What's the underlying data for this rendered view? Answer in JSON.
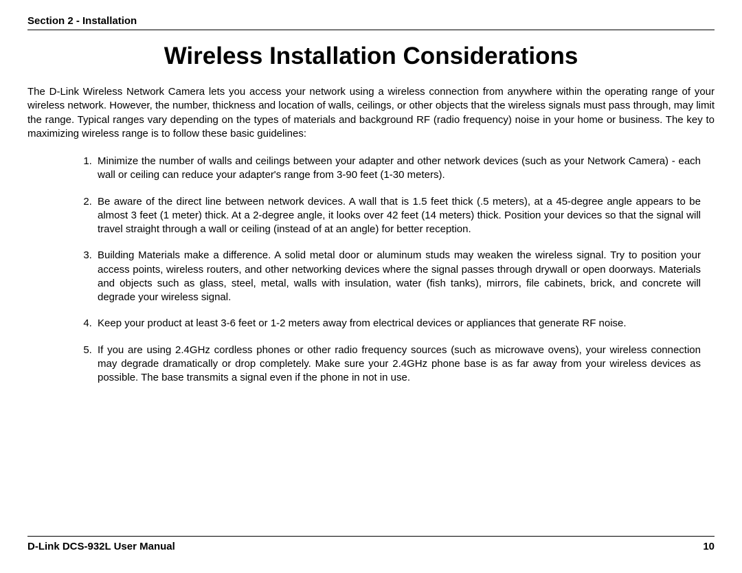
{
  "header": {
    "section_label": "Section 2 - Installation"
  },
  "title": "Wireless Installation Considerations",
  "intro": "The D-Link Wireless Network Camera lets you access your network using a wireless connection from anywhere within the operating range of your wireless network. However, the number, thickness and location of walls, ceilings, or other objects that the wireless signals must pass through, may limit the range. Typical ranges vary depending on the types of materials and background RF (radio frequency) noise in your home or business. The key to maximizing wireless range is to follow these basic guidelines:",
  "guidelines": [
    "Minimize the number of walls and ceilings between your adapter and other network devices (such as your Network Camera) - each wall or ceiling can reduce your adapter's range from 3-90 feet (1-30 meters).",
    "Be aware of the direct line between network devices. A wall that is 1.5 feet thick (.5 meters), at a 45-degree angle appears to be almost 3 feet (1 meter) thick. At a 2-degree angle, it looks over 42 feet (14 meters) thick. Position your devices so that the signal will travel straight through a wall or ceiling (instead of at an angle) for better reception.",
    "Building Materials make a difference. A solid metal door or aluminum studs may weaken the wireless signal. Try to position your access points, wireless routers, and other networking devices where the signal passes through drywall or open doorways. Materials and objects such as glass, steel, metal, walls with insulation, water (fish tanks), mirrors, file cabinets, brick, and concrete will degrade your wireless signal.",
    "Keep your product at least 3-6 feet or 1-2 meters away from electrical devices or appliances that generate RF noise.",
    "If you are using 2.4GHz cordless phones or other radio frequency sources (such as microwave ovens), your wireless connection may degrade dramatically or drop completely. Make sure your 2.4GHz phone base is as far away from your wireless devices as possible. The base transmits a signal even if the phone in not in use."
  ],
  "footer": {
    "manual_label": "D-Link DCS-932L User Manual",
    "page_number": "10"
  }
}
